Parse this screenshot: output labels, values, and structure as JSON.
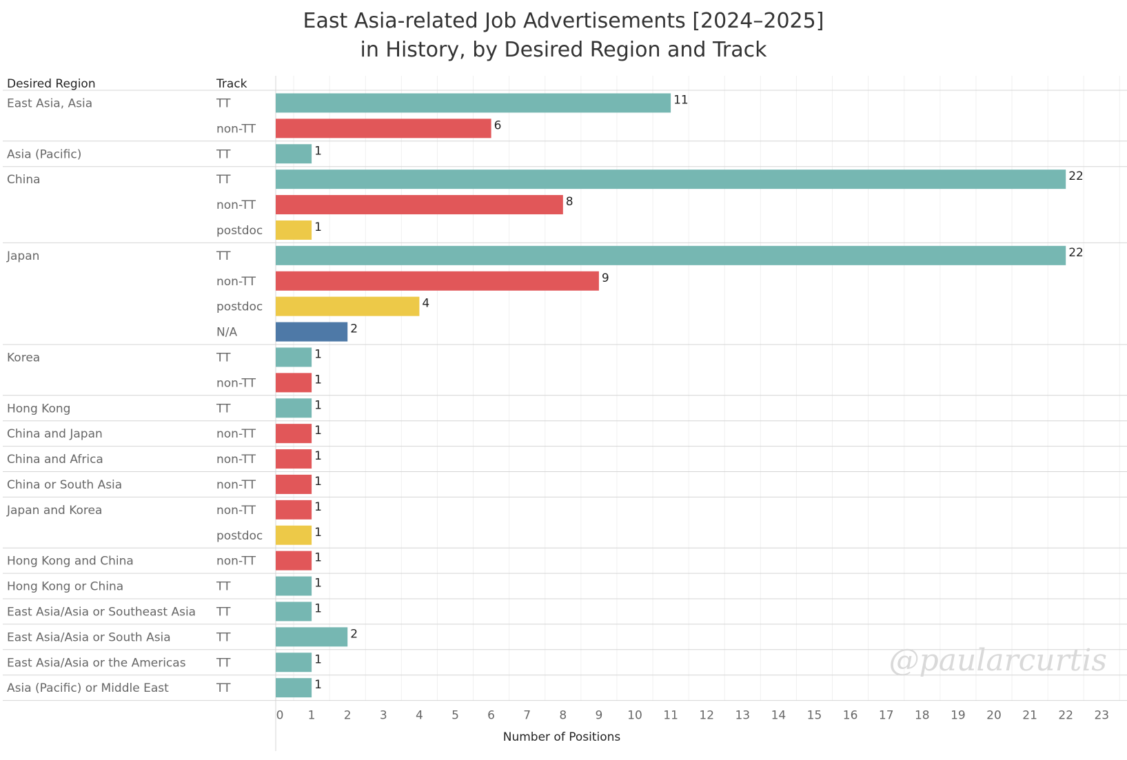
{
  "title_lines": [
    "East Asia-related Job Advertisements [2024–2025]",
    "in History, by Desired Region and Track"
  ],
  "headers": {
    "region": "Desired Region",
    "track": "Track"
  },
  "watermark": "@paularcurtis",
  "colors": {
    "TT": "#76b7b2",
    "non-TT": "#e15759",
    "postdoc": "#edc948",
    "N/A": "#4e79a7"
  },
  "chart_data": {
    "type": "bar",
    "orientation": "horizontal",
    "xlabel": "Number of Positions",
    "xlim": [
      0,
      23
    ],
    "xticks": [
      0,
      1,
      2,
      3,
      4,
      5,
      6,
      7,
      8,
      9,
      10,
      11,
      12,
      13,
      14,
      15,
      16,
      17,
      18,
      19,
      20,
      21,
      22,
      23
    ],
    "grid": true,
    "groups": [
      {
        "region": "East Asia, Asia",
        "bars": [
          {
            "track": "TT",
            "value": 11
          },
          {
            "track": "non-TT",
            "value": 6
          }
        ]
      },
      {
        "region": "Asia (Pacific)",
        "bars": [
          {
            "track": "TT",
            "value": 1
          }
        ]
      },
      {
        "region": "China",
        "bars": [
          {
            "track": "TT",
            "value": 22
          },
          {
            "track": "non-TT",
            "value": 8
          },
          {
            "track": "postdoc",
            "value": 1
          }
        ]
      },
      {
        "region": "Japan",
        "bars": [
          {
            "track": "TT",
            "value": 22
          },
          {
            "track": "non-TT",
            "value": 9
          },
          {
            "track": "postdoc",
            "value": 4
          },
          {
            "track": "N/A",
            "value": 2
          }
        ]
      },
      {
        "region": "Korea",
        "bars": [
          {
            "track": "TT",
            "value": 1
          },
          {
            "track": "non-TT",
            "value": 1
          }
        ]
      },
      {
        "region": "Hong Kong",
        "bars": [
          {
            "track": "TT",
            "value": 1
          }
        ]
      },
      {
        "region": "China and Japan",
        "bars": [
          {
            "track": "non-TT",
            "value": 1
          }
        ]
      },
      {
        "region": "China and Africa",
        "bars": [
          {
            "track": "non-TT",
            "value": 1
          }
        ]
      },
      {
        "region": "China or South Asia",
        "bars": [
          {
            "track": "non-TT",
            "value": 1
          }
        ]
      },
      {
        "region": "Japan and Korea",
        "bars": [
          {
            "track": "non-TT",
            "value": 1
          },
          {
            "track": "postdoc",
            "value": 1
          }
        ]
      },
      {
        "region": "Hong Kong and China",
        "bars": [
          {
            "track": "non-TT",
            "value": 1
          }
        ]
      },
      {
        "region": "Hong Kong or China",
        "bars": [
          {
            "track": "TT",
            "value": 1
          }
        ]
      },
      {
        "region": "East Asia/Asia or Southeast Asia",
        "bars": [
          {
            "track": "TT",
            "value": 1
          }
        ]
      },
      {
        "region": "East Asia/Asia or South Asia",
        "bars": [
          {
            "track": "TT",
            "value": 2
          }
        ]
      },
      {
        "region": "East Asia/Asia or the Americas",
        "bars": [
          {
            "track": "TT",
            "value": 1
          }
        ]
      },
      {
        "region": "Asia (Pacific) or Middle East",
        "bars": [
          {
            "track": "TT",
            "value": 1
          }
        ]
      }
    ]
  }
}
